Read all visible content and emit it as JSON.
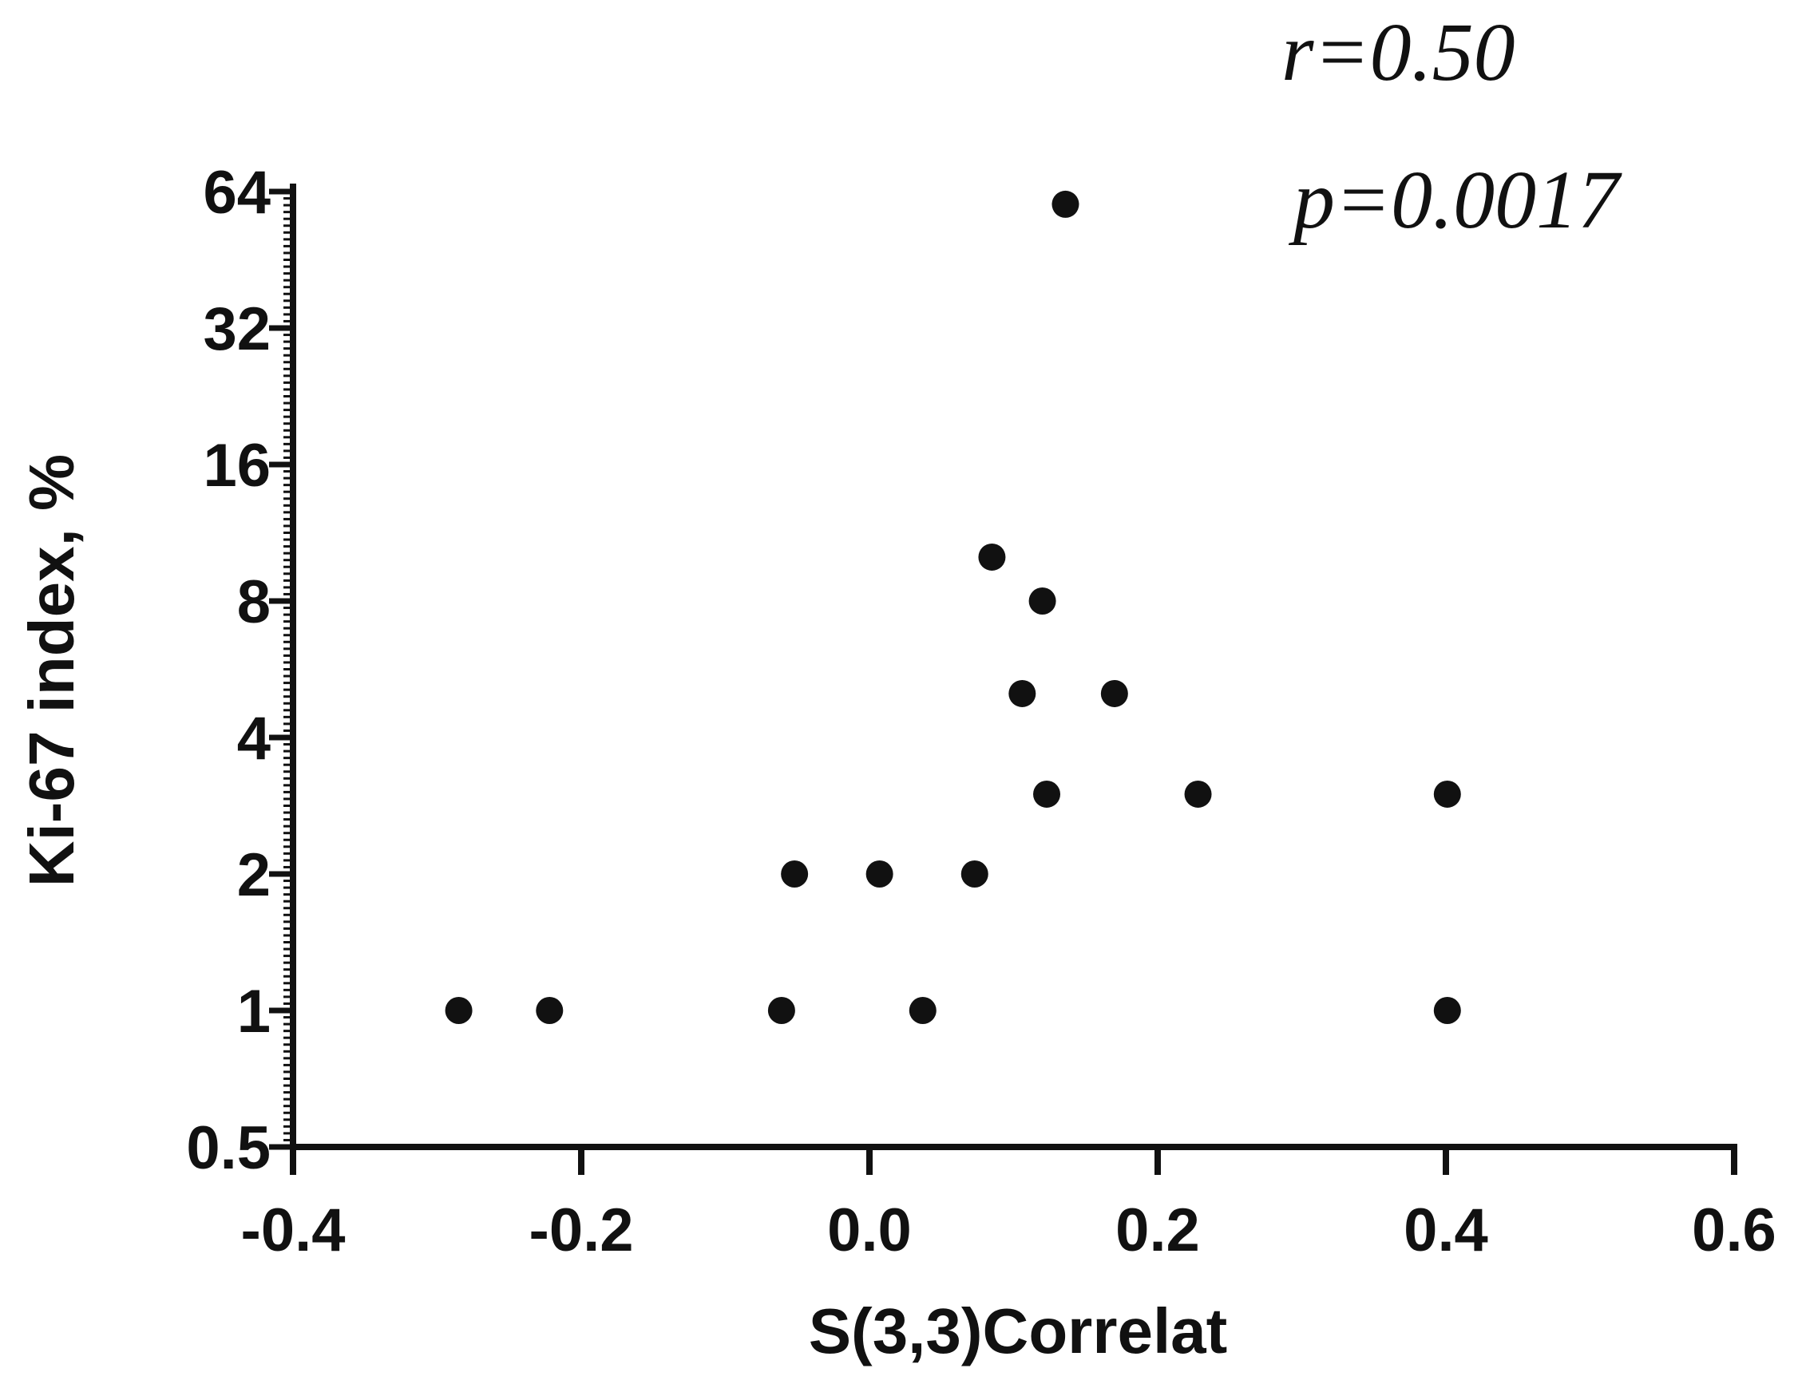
{
  "chart_data": {
    "type": "scatter",
    "xlabel": "S(3,3)Correlat",
    "ylabel": "Ki-67 index, %",
    "xlim": [
      -0.4,
      0.6
    ],
    "ylim": [
      0.5,
      64
    ],
    "y_scale": "log2",
    "grid": false,
    "x_ticks": [
      "-0.4",
      "-0.2",
      "0.0",
      "0.2",
      "0.4",
      "0.6"
    ],
    "y_ticks": [
      "0.5",
      "1",
      "2",
      "4",
      "8",
      "16",
      "32",
      "64"
    ],
    "points": [
      {
        "x": -0.285,
        "y": 1
      },
      {
        "x": -0.222,
        "y": 1
      },
      {
        "x": -0.061,
        "y": 1
      },
      {
        "x": 0.037,
        "y": 1
      },
      {
        "x": 0.401,
        "y": 1
      },
      {
        "x": -0.052,
        "y": 2
      },
      {
        "x": 0.007,
        "y": 2
      },
      {
        "x": 0.073,
        "y": 2
      },
      {
        "x": 0.123,
        "y": 3
      },
      {
        "x": 0.228,
        "y": 3
      },
      {
        "x": 0.401,
        "y": 3
      },
      {
        "x": 0.106,
        "y": 5
      },
      {
        "x": 0.17,
        "y": 5
      },
      {
        "x": 0.12,
        "y": 8
      },
      {
        "x": 0.085,
        "y": 10
      },
      {
        "x": 0.136,
        "y": 60
      }
    ],
    "annotations": {
      "r": "r=0.50",
      "p": "p=0.0017"
    },
    "point_color": "#111111",
    "axis_color": "#111111"
  }
}
